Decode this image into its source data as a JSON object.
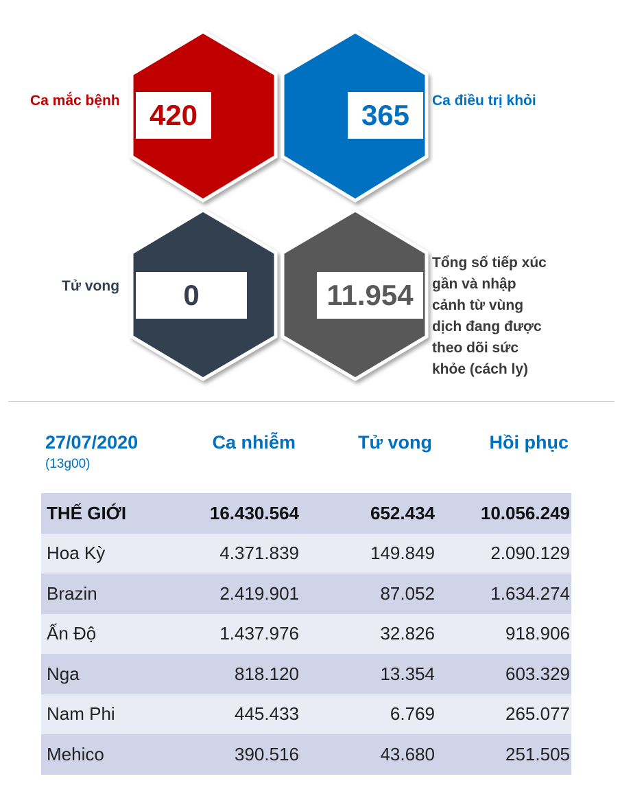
{
  "summary": {
    "cases": {
      "label": "Ca mắc bệnh",
      "value": "420",
      "color": "#c00000"
    },
    "recovered": {
      "label": "Ca điều trị khỏi",
      "value": "365",
      "color": "#0070c0"
    },
    "deaths": {
      "label": "Tử vong",
      "value": "0",
      "color": "#333f50"
    },
    "monitored": {
      "label_lines": [
        "Tổng số tiếp xúc",
        "gần và nhập",
        "cảnh từ vùng",
        "dịch đang được",
        "theo dõi sức",
        "khỏe (cách ly)"
      ],
      "value": "11.954",
      "color": "#595959"
    }
  },
  "table": {
    "date": "27/07/2020",
    "time": "(13g00)",
    "headers": {
      "cases": "Ca nhiễm",
      "deaths": "Tử vong",
      "recovered": "Hồi phục"
    },
    "world": {
      "name": "THẾ GIỚI",
      "cases": "16.430.564",
      "deaths": "652.434",
      "recovered": "10.056.249"
    },
    "rows": [
      {
        "name": "Hoa Kỳ",
        "cases": "4.371.839",
        "deaths": "149.849",
        "recovered": "2.090.129"
      },
      {
        "name": "Brazin",
        "cases": "2.419.901",
        "deaths": "87.052",
        "recovered": "1.634.274"
      },
      {
        "name": "Ấn Độ",
        "cases": "1.437.976",
        "deaths": "32.826",
        "recovered": "918.906"
      },
      {
        "name": "Nga",
        "cases": "818.120",
        "deaths": "13.354",
        "recovered": "603.329"
      },
      {
        "name": "Nam Phi",
        "cases": "445.433",
        "deaths": "6.769",
        "recovered": "265.077"
      },
      {
        "name": "Mehico",
        "cases": "390.516",
        "deaths": "43.680",
        "recovered": "251.505"
      }
    ]
  }
}
